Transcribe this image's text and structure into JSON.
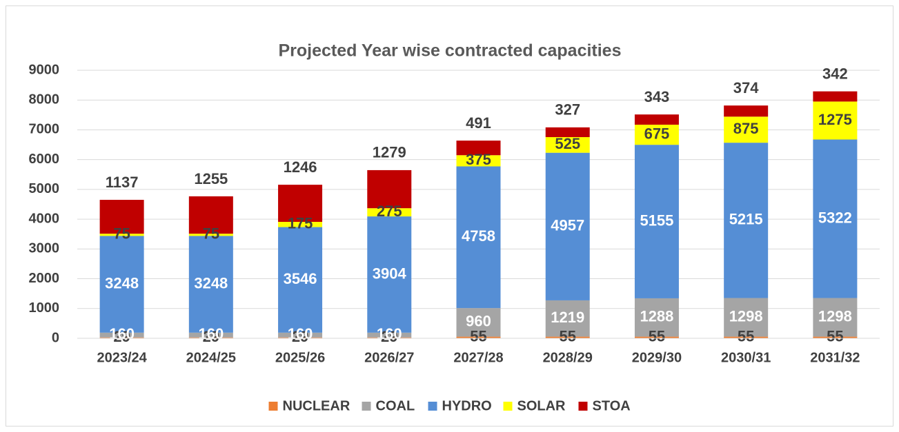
{
  "chart_data": {
    "type": "stacked_bar",
    "title": "Projected Year wise contracted capacities",
    "categories": [
      "2023/24",
      "2024/25",
      "2025/26",
      "2026/27",
      "2027/28",
      "2028/29",
      "2029/30",
      "2030/31",
      "2031/32"
    ],
    "series": [
      {
        "name": "NUCLEAR",
        "color": "#ed7d31",
        "label_color": "#404040",
        "values": [
          29,
          29,
          29,
          29,
          55,
          55,
          55,
          55,
          55
        ]
      },
      {
        "name": "COAL",
        "color": "#a5a5a5",
        "label_color": "#ffffff",
        "values": [
          160,
          160,
          160,
          160,
          960,
          1219,
          1288,
          1298,
          1298
        ]
      },
      {
        "name": "HYDRO",
        "color": "#558ed5",
        "label_color": "#ffffff",
        "values": [
          3248,
          3248,
          3546,
          3904,
          4758,
          4957,
          5155,
          5215,
          5322
        ]
      },
      {
        "name": "SOLAR",
        "color": "#ffff00",
        "label_color": "#404040",
        "values": [
          75,
          75,
          175,
          275,
          375,
          525,
          675,
          875,
          1275
        ]
      },
      {
        "name": "STOA",
        "color": "#c00000",
        "label_color": "#404040",
        "values": [
          1137,
          1255,
          1246,
          1279,
          491,
          327,
          343,
          374,
          342
        ]
      }
    ],
    "ylim": [
      0,
      9000
    ],
    "yticks": [
      0,
      1000,
      2000,
      3000,
      4000,
      5000,
      6000,
      7000,
      8000,
      9000
    ],
    "grid": true,
    "legend": "bottom"
  }
}
